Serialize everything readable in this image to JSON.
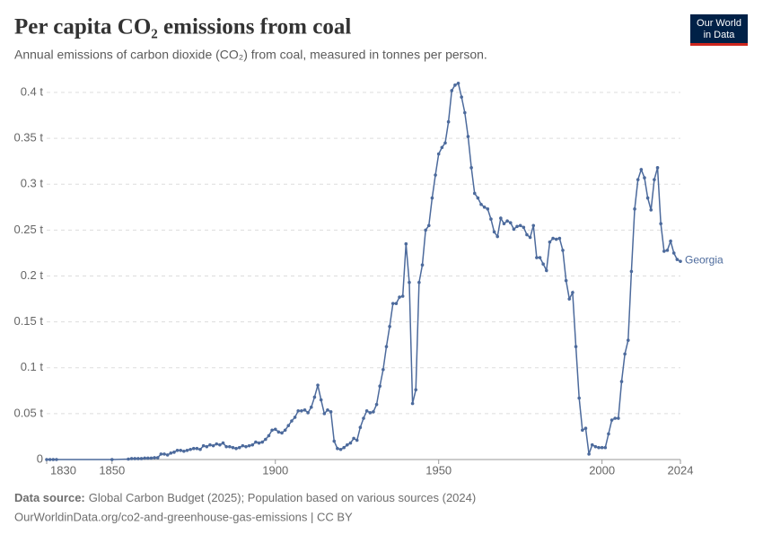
{
  "chart_data": {
    "type": "line",
    "title": "Per capita CO₂ emissions from coal",
    "subtitle": "Annual emissions of carbon dioxide (CO₂) from coal, measured in tonnes per person.",
    "logo": [
      "Our World",
      "in Data"
    ],
    "source_label": "Data source:",
    "source": "Global Carbon Budget (2025); Population based on various sources (2024)",
    "footer": "OurWorldinData.org/co2-and-greenhouse-gas-emissions | CC BY",
    "xlim": [
      1830,
      2024
    ],
    "xticks": [
      1830,
      1850,
      1900,
      1950,
      2000,
      2024
    ],
    "ylim": [
      0,
      0.4
    ],
    "yticks": [
      0,
      {
        "value": 0.05,
        "label": "0.05 t"
      },
      {
        "value": 0.1,
        "label": "0.1 t"
      },
      {
        "value": 0.15,
        "label": "0.15 t"
      },
      {
        "value": 0.2,
        "label": "0.2 t"
      },
      {
        "value": 0.25,
        "label": "0.25 t"
      },
      {
        "value": 0.3,
        "label": "0.3 t"
      },
      {
        "value": 0.35,
        "label": "0.35 t"
      },
      {
        "value": 0.4,
        "label": "0.4 t"
      }
    ],
    "grid": true,
    "x": [
      1830,
      1831,
      1832,
      1833,
      1850,
      1855,
      1856,
      1857,
      1858,
      1859,
      1860,
      1861,
      1862,
      1863,
      1864,
      1865,
      1866,
      1867,
      1868,
      1869,
      1870,
      1871,
      1872,
      1873,
      1874,
      1875,
      1876,
      1877,
      1878,
      1879,
      1880,
      1881,
      1882,
      1883,
      1884,
      1885,
      1886,
      1887,
      1888,
      1889,
      1890,
      1891,
      1892,
      1893,
      1894,
      1895,
      1896,
      1897,
      1898,
      1899,
      1900,
      1901,
      1902,
      1903,
      1904,
      1905,
      1906,
      1907,
      1908,
      1909,
      1910,
      1911,
      1912,
      1913,
      1914,
      1915,
      1916,
      1917,
      1918,
      1919,
      1920,
      1921,
      1922,
      1923,
      1924,
      1925,
      1926,
      1927,
      1928,
      1929,
      1930,
      1931,
      1932,
      1933,
      1934,
      1935,
      1936,
      1937,
      1938,
      1939,
      1940,
      1941,
      1942,
      1943,
      1944,
      1945,
      1946,
      1947,
      1948,
      1949,
      1950,
      1951,
      1952,
      1953,
      1954,
      1955,
      1956,
      1957,
      1958,
      1959,
      1960,
      1961,
      1962,
      1963,
      1964,
      1965,
      1966,
      1967,
      1968,
      1969,
      1970,
      1971,
      1972,
      1973,
      1974,
      1975,
      1976,
      1977,
      1978,
      1979,
      1980,
      1981,
      1982,
      1983,
      1984,
      1985,
      1986,
      1987,
      1988,
      1989,
      1990,
      1991,
      1992,
      1993,
      1994,
      1995,
      1996,
      1997,
      1998,
      1999,
      2000,
      2001,
      2002,
      2003,
      2004,
      2005,
      2006,
      2007,
      2008,
      2009,
      2010,
      2011,
      2012,
      2013,
      2014,
      2015,
      2016,
      2017,
      2018,
      2019,
      2020,
      2021,
      2022,
      2023,
      2024
    ],
    "series": [
      {
        "name": "Georgia",
        "color": "#4c6a9c",
        "values": [
          0,
          0,
          0,
          0,
          0,
          0.0005,
          0.001,
          0.001,
          0.001,
          0.001,
          0.0015,
          0.0015,
          0.0015,
          0.002,
          0.002,
          0.006,
          0.006,
          0.005,
          0.007,
          0.008,
          0.01,
          0.01,
          0.009,
          0.01,
          0.011,
          0.012,
          0.012,
          0.011,
          0.015,
          0.014,
          0.016,
          0.015,
          0.017,
          0.016,
          0.018,
          0.014,
          0.014,
          0.013,
          0.012,
          0.013,
          0.015,
          0.014,
          0.015,
          0.016,
          0.019,
          0.018,
          0.019,
          0.022,
          0.026,
          0.032,
          0.033,
          0.03,
          0.029,
          0.032,
          0.037,
          0.042,
          0.046,
          0.053,
          0.053,
          0.054,
          0.051,
          0.057,
          0.068,
          0.081,
          0.065,
          0.05,
          0.054,
          0.052,
          0.02,
          0.012,
          0.011,
          0.013,
          0.016,
          0.018,
          0.023,
          0.021,
          0.035,
          0.045,
          0.053,
          0.051,
          0.052,
          0.06,
          0.08,
          0.098,
          0.123,
          0.145,
          0.17,
          0.17,
          0.177,
          0.178,
          0.235,
          0.193,
          0.061,
          0.076,
          0.193,
          0.212,
          0.25,
          0.255,
          0.285,
          0.31,
          0.333,
          0.34,
          0.345,
          0.368,
          0.402,
          0.408,
          0.41,
          0.395,
          0.378,
          0.352,
          0.318,
          0.29,
          0.285,
          0.278,
          0.275,
          0.273,
          0.262,
          0.248,
          0.243,
          0.263,
          0.257,
          0.26,
          0.258,
          0.251,
          0.254,
          0.255,
          0.253,
          0.245,
          0.242,
          0.255,
          0.22,
          0.22,
          0.213,
          0.206,
          0.237,
          0.241,
          0.24,
          0.241,
          0.228,
          0.195,
          0.175,
          0.182,
          0.123,
          0.067,
          0.032,
          0.034,
          0.006,
          0.016,
          0.014,
          0.013,
          0.013,
          0.013,
          0.028,
          0.043,
          0.045,
          0.045,
          0.085,
          0.115,
          0.13,
          0.205,
          0.273,
          0.305,
          0.316,
          0.307,
          0.285,
          0.272,
          0.305,
          0.318,
          0.257,
          0.227,
          0.228,
          0.238,
          0.225,
          0.218,
          0.216
        ]
      }
    ]
  }
}
